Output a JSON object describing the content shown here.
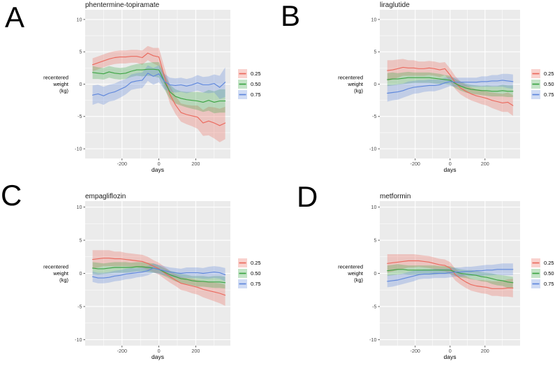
{
  "figure": {
    "panel_labels": [
      "A",
      "B",
      "C",
      "D"
    ],
    "style": {
      "panel_background": "#EBEBEB",
      "gridline_color": "#FFFFFF",
      "tick_mark_color": "#333333",
      "tick_label_color": "#4D4D4D",
      "text_color": "#000000",
      "band_opacity": 0.3
    }
  },
  "chart_data": [
    {
      "type": "line",
      "panel_label": "A",
      "title": "phentermine-topiramate",
      "xlabel": "days",
      "ylabel_lines": [
        "recentered",
        "weight",
        "(kg)"
      ],
      "xlim": [
        -400,
        388
      ],
      "ylim": [
        -11.5,
        11.5
      ],
      "x_major_ticks": [
        -200,
        0,
        200
      ],
      "x_minor_gridlines": [
        -300,
        -100,
        100,
        300
      ],
      "y_major_ticks": [
        10,
        5,
        0,
        -5,
        -10
      ],
      "y_minor_gridlines": [
        -7.5,
        -2.5,
        2.5,
        7.5
      ],
      "grid": true,
      "legend_position": "right",
      "x": [
        -360,
        -330,
        -300,
        -270,
        -240,
        -210,
        -180,
        -150,
        -120,
        -90,
        -60,
        -30,
        0,
        30,
        60,
        90,
        120,
        150,
        180,
        210,
        240,
        270,
        300,
        330,
        360
      ],
      "series": [
        {
          "name": "0.25",
          "line_color": "#EB6A5E",
          "values": [
            3.0,
            3.3,
            3.6,
            3.9,
            4.1,
            4.2,
            4.2,
            4.3,
            4.3,
            4.1,
            4.8,
            4.4,
            4.2,
            1.2,
            -1.6,
            -3.2,
            -4.4,
            -4.7,
            -4.9,
            -5.1,
            -6.0,
            -5.7,
            -6.0,
            -6.4,
            -6.0
          ],
          "band_halfwidth": [
            1.0,
            1.0,
            1.0,
            1.0,
            1.0,
            1.0,
            1.0,
            1.0,
            1.0,
            1.1,
            1.1,
            1.2,
            1.4,
            1.4,
            1.4,
            1.4,
            1.4,
            1.5,
            1.6,
            1.8,
            2.0,
            2.2,
            2.4,
            2.6,
            2.5
          ]
        },
        {
          "name": "0.50",
          "line_color": "#3DA444",
          "values": [
            1.8,
            1.7,
            1.6,
            1.9,
            1.7,
            1.6,
            1.7,
            2.0,
            2.2,
            2.2,
            2.3,
            2.3,
            2.2,
            0.4,
            -1.2,
            -1.9,
            -2.2,
            -2.4,
            -2.5,
            -2.6,
            -2.8,
            -2.5,
            -2.8,
            -2.6,
            -2.6
          ],
          "band_halfwidth": [
            1.0,
            0.9,
            0.9,
            0.9,
            0.9,
            0.9,
            0.9,
            0.9,
            0.9,
            1.0,
            1.0,
            1.1,
            1.2,
            1.2,
            1.1,
            1.1,
            1.1,
            1.2,
            1.3,
            1.4,
            1.5,
            1.6,
            1.7,
            1.8,
            1.8
          ]
        },
        {
          "name": "0.75",
          "line_color": "#6088DC",
          "values": [
            -1.7,
            -1.5,
            -1.8,
            -1.4,
            -1.2,
            -0.8,
            -0.4,
            0.3,
            0.5,
            0.6,
            1.7,
            1.2,
            1.6,
            0.4,
            -0.1,
            -0.2,
            -0.1,
            -0.3,
            -0.1,
            0.2,
            -0.1,
            -0.1,
            0.1,
            -0.5,
            0.3
          ],
          "band_halfwidth": [
            1.5,
            1.4,
            1.4,
            1.3,
            1.3,
            1.3,
            1.2,
            1.2,
            1.2,
            1.2,
            1.2,
            1.3,
            1.3,
            1.2,
            1.1,
            1.1,
            1.1,
            1.1,
            1.1,
            1.2,
            1.2,
            1.3,
            1.4,
            1.8,
            2.3
          ]
        }
      ]
    },
    {
      "type": "line",
      "panel_label": "B",
      "title": "liraglutide",
      "xlabel": "days",
      "ylabel_lines": [
        "recentered",
        "weight",
        "(kg)"
      ],
      "xlim": [
        -403,
        401
      ],
      "ylim": [
        -11.5,
        11.5
      ],
      "x_major_ticks": [
        -200,
        0,
        200
      ],
      "x_minor_gridlines": [
        -300,
        -100,
        100,
        300
      ],
      "y_major_ticks": [
        10,
        5,
        0,
        -5,
        -10
      ],
      "y_minor_gridlines": [
        -7.5,
        -2.5,
        2.5,
        7.5
      ],
      "grid": true,
      "legend_position": "right",
      "x": [
        -360,
        -330,
        -300,
        -270,
        -240,
        -210,
        -180,
        -150,
        -120,
        -90,
        -60,
        -30,
        0,
        30,
        60,
        90,
        120,
        150,
        180,
        210,
        240,
        270,
        300,
        330,
        360
      ],
      "series": [
        {
          "name": "0.25",
          "line_color": "#EB6A5E",
          "values": [
            2.1,
            2.2,
            2.4,
            2.6,
            2.5,
            2.5,
            2.4,
            2.4,
            2.5,
            2.4,
            2.2,
            2.4,
            1.4,
            0.2,
            -0.6,
            -1.1,
            -1.5,
            -1.8,
            -2.0,
            -2.2,
            -2.5,
            -2.7,
            -2.9,
            -2.8,
            -3.3
          ],
          "band_halfwidth": [
            1.6,
            1.5,
            1.4,
            1.3,
            1.2,
            1.2,
            1.1,
            1.1,
            1.1,
            1.1,
            1.1,
            1.0,
            1.0,
            1.0,
            1.0,
            1.0,
            1.0,
            1.0,
            1.1,
            1.1,
            1.2,
            1.3,
            1.4,
            1.5,
            1.6
          ]
        },
        {
          "name": "0.50",
          "line_color": "#3DA444",
          "values": [
            0.7,
            0.8,
            0.8,
            0.9,
            1.0,
            1.0,
            1.0,
            1.0,
            1.0,
            0.9,
            0.8,
            0.7,
            0.6,
            0.1,
            -0.3,
            -0.6,
            -0.8,
            -0.9,
            -1.0,
            -1.0,
            -1.1,
            -1.1,
            -1.0,
            -1.1,
            -1.1
          ],
          "band_halfwidth": [
            1.0,
            1.0,
            0.9,
            0.9,
            0.9,
            0.8,
            0.8,
            0.8,
            0.8,
            0.8,
            0.8,
            0.7,
            0.7,
            0.7,
            0.7,
            0.7,
            0.7,
            0.7,
            0.7,
            0.8,
            0.8,
            0.8,
            0.9,
            0.9,
            0.9
          ]
        },
        {
          "name": "0.75",
          "line_color": "#6088DC",
          "values": [
            -1.4,
            -1.3,
            -1.2,
            -1.0,
            -0.7,
            -0.5,
            -0.4,
            -0.3,
            -0.2,
            -0.2,
            -0.1,
            0.2,
            0.4,
            0.3,
            0.3,
            0.3,
            0.3,
            0.3,
            0.4,
            0.4,
            0.5,
            0.5,
            0.6,
            0.5,
            0.4
          ],
          "band_halfwidth": [
            1.3,
            1.2,
            1.2,
            1.1,
            1.1,
            1.0,
            1.0,
            0.9,
            0.9,
            0.9,
            0.8,
            0.8,
            0.7,
            0.7,
            0.7,
            0.7,
            0.7,
            0.7,
            0.8,
            0.8,
            0.9,
            0.9,
            1.0,
            1.1,
            1.1
          ]
        }
      ]
    },
    {
      "type": "line",
      "panel_label": "C",
      "title": "empagliflozin",
      "xlabel": "days",
      "ylabel_lines": [
        "recentered",
        "weight",
        "(kg)"
      ],
      "xlim": [
        -400,
        388
      ],
      "ylim": [
        -10.9,
        10.9
      ],
      "x_major_ticks": [
        -200,
        0,
        200
      ],
      "x_minor_gridlines": [
        -300,
        -100,
        100,
        300
      ],
      "y_major_ticks": [
        10,
        5,
        0,
        -5,
        -10
      ],
      "y_minor_gridlines": [
        -7.5,
        -2.5,
        2.5,
        7.5
      ],
      "grid": true,
      "legend_position": "right",
      "x": [
        -360,
        -330,
        -300,
        -270,
        -240,
        -210,
        -180,
        -150,
        -120,
        -90,
        -60,
        -30,
        0,
        30,
        60,
        90,
        120,
        150,
        180,
        210,
        240,
        270,
        300,
        330,
        360
      ],
      "series": [
        {
          "name": "0.25",
          "line_color": "#EB6A5E",
          "values": [
            2.1,
            2.2,
            2.3,
            2.3,
            2.2,
            2.2,
            2.1,
            2.0,
            1.9,
            1.8,
            1.5,
            1.1,
            0.7,
            0.1,
            -0.5,
            -1.0,
            -1.5,
            -1.7,
            -1.9,
            -2.1,
            -2.4,
            -2.6,
            -2.8,
            -3.0,
            -3.3
          ],
          "band_halfwidth": [
            1.4,
            1.3,
            1.2,
            1.2,
            1.1,
            1.1,
            1.0,
            1.0,
            1.0,
            1.0,
            1.0,
            0.9,
            0.9,
            0.9,
            0.9,
            0.9,
            1.0,
            1.0,
            1.1,
            1.1,
            1.2,
            1.3,
            1.4,
            1.5,
            1.6
          ]
        },
        {
          "name": "0.50",
          "line_color": "#3DA444",
          "values": [
            0.8,
            0.7,
            0.7,
            0.8,
            0.9,
            0.9,
            0.9,
            0.9,
            1.0,
            1.0,
            0.9,
            0.8,
            0.6,
            0.2,
            -0.2,
            -0.5,
            -0.8,
            -0.9,
            -1.1,
            -1.2,
            -1.2,
            -1.3,
            -1.3,
            -1.3,
            -1.4
          ],
          "band_halfwidth": [
            0.9,
            0.9,
            0.8,
            0.8,
            0.8,
            0.8,
            0.8,
            0.7,
            0.7,
            0.7,
            0.7,
            0.7,
            0.6,
            0.6,
            0.6,
            0.7,
            0.7,
            0.7,
            0.7,
            0.8,
            0.8,
            0.8,
            0.9,
            0.9,
            0.9
          ]
        },
        {
          "name": "0.75",
          "line_color": "#6088DC",
          "values": [
            -0.5,
            -0.7,
            -0.7,
            -0.6,
            -0.4,
            -0.3,
            -0.1,
            0.0,
            0.1,
            0.2,
            0.4,
            0.8,
            0.6,
            0.4,
            0.2,
            0.1,
            0.0,
            0.1,
            0.1,
            0.1,
            0.0,
            0.1,
            0.2,
            0.1,
            -0.2
          ],
          "band_halfwidth": [
            0.8,
            0.8,
            0.8,
            0.8,
            0.8,
            0.8,
            0.8,
            0.8,
            0.7,
            0.7,
            0.7,
            0.7,
            0.7,
            0.7,
            0.7,
            0.7,
            0.7,
            0.8,
            0.8,
            0.8,
            0.8,
            0.9,
            0.9,
            0.9,
            1.0
          ]
        }
      ]
    },
    {
      "type": "line",
      "panel_label": "D",
      "title": "metformin",
      "xlabel": "days",
      "ylabel_lines": [
        "recentered",
        "weight",
        "(kg)"
      ],
      "xlim": [
        -403,
        401
      ],
      "ylim": [
        -10.9,
        10.9
      ],
      "x_major_ticks": [
        -200,
        0,
        200
      ],
      "x_minor_gridlines": [
        -300,
        -100,
        100,
        300
      ],
      "y_major_ticks": [
        10,
        5,
        0,
        -5,
        -10
      ],
      "y_minor_gridlines": [
        -7.5,
        -2.5,
        2.5,
        7.5
      ],
      "grid": true,
      "legend_position": "right",
      "x": [
        -360,
        -330,
        -300,
        -270,
        -240,
        -210,
        -180,
        -150,
        -120,
        -90,
        -60,
        -30,
        0,
        30,
        60,
        90,
        120,
        150,
        180,
        210,
        240,
        270,
        300,
        330,
        360
      ],
      "series": [
        {
          "name": "0.25",
          "line_color": "#EB6A5E",
          "values": [
            1.5,
            1.6,
            1.7,
            1.8,
            1.9,
            1.9,
            1.9,
            1.8,
            1.7,
            1.5,
            1.3,
            1.2,
            0.8,
            -0.2,
            -0.8,
            -1.3,
            -1.7,
            -1.9,
            -2.0,
            -2.1,
            -2.3,
            -2.3,
            -2.3,
            -2.2,
            -2.2
          ],
          "band_halfwidth": [
            1.4,
            1.3,
            1.2,
            1.1,
            1.0,
            1.0,
            0.9,
            0.9,
            0.9,
            0.9,
            0.9,
            0.9,
            0.9,
            0.9,
            0.9,
            0.9,
            0.9,
            0.9,
            1.0,
            1.0,
            1.1,
            1.1,
            1.2,
            1.3,
            1.4
          ]
        },
        {
          "name": "0.50",
          "line_color": "#3DA444",
          "values": [
            0.4,
            0.5,
            0.6,
            0.6,
            0.5,
            0.5,
            0.5,
            0.5,
            0.5,
            0.5,
            0.5,
            0.5,
            0.5,
            0.2,
            0.0,
            -0.1,
            -0.2,
            -0.3,
            -0.5,
            -0.6,
            -0.8,
            -1.0,
            -1.1,
            -1.3,
            -1.4
          ],
          "band_halfwidth": [
            0.8,
            0.8,
            0.8,
            0.7,
            0.7,
            0.7,
            0.7,
            0.7,
            0.7,
            0.7,
            0.6,
            0.6,
            0.6,
            0.6,
            0.6,
            0.6,
            0.7,
            0.7,
            0.7,
            0.7,
            0.8,
            0.8,
            0.8,
            0.9,
            0.9
          ]
        },
        {
          "name": "0.75",
          "line_color": "#6088DC",
          "values": [
            -1.2,
            -1.1,
            -1.0,
            -0.8,
            -0.6,
            -0.4,
            -0.2,
            -0.1,
            -0.1,
            0.0,
            0.0,
            0.0,
            0.1,
            0.2,
            0.2,
            0.3,
            0.3,
            0.4,
            0.4,
            0.5,
            0.5,
            0.6,
            0.6,
            0.6,
            0.6
          ],
          "band_halfwidth": [
            0.9,
            0.9,
            0.8,
            0.8,
            0.8,
            0.8,
            0.7,
            0.7,
            0.7,
            0.7,
            0.7,
            0.7,
            0.7,
            0.7,
            0.7,
            0.7,
            0.7,
            0.7,
            0.8,
            0.8,
            0.8,
            0.8,
            0.9,
            0.9,
            0.9
          ]
        }
      ]
    }
  ]
}
